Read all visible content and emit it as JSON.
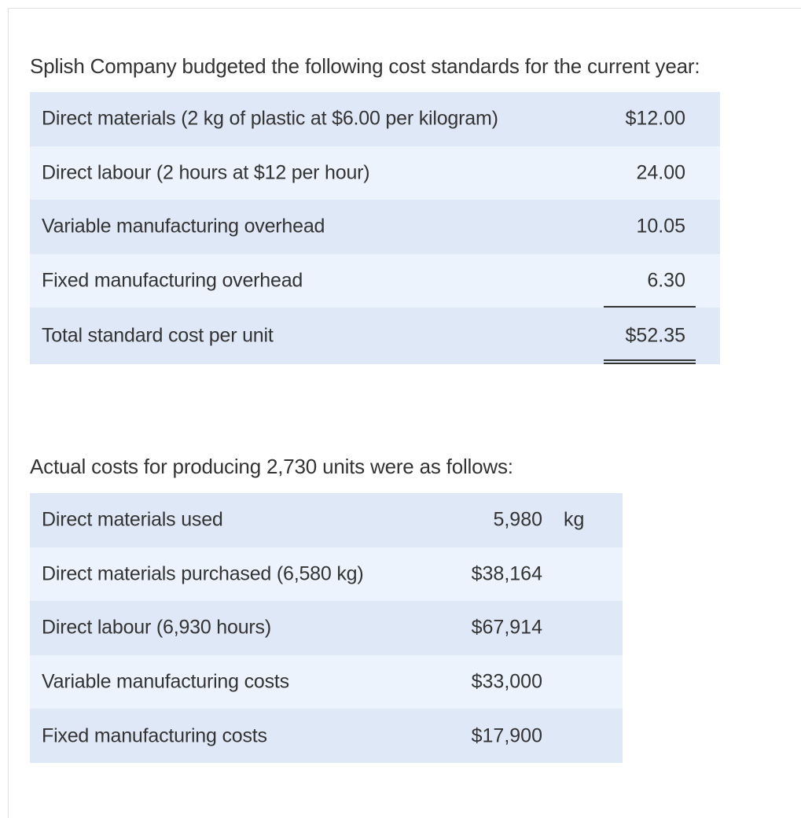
{
  "intro_text": "Splish Company budgeted the following cost standards for the current year:",
  "standards": {
    "rows": [
      {
        "label": "Direct materials (2 kg of plastic at $6.00 per kilogram)",
        "amount": "$12.00"
      },
      {
        "label": "Direct labour (2 hours at $12 per hour)",
        "amount": "24.00"
      },
      {
        "label": "Variable manufacturing overhead",
        "amount": "10.05"
      },
      {
        "label": "Fixed manufacturing overhead",
        "amount": "6.30"
      },
      {
        "label": "Total standard cost per unit",
        "amount": "$52.35"
      }
    ]
  },
  "actual_text": "Actual costs for producing 2,730 units were as follows:",
  "actuals": {
    "rows": [
      {
        "label": "Direct materials used",
        "amount": "5,980",
        "unit": "kg"
      },
      {
        "label": "Direct materials purchased (6,580 kg)",
        "amount": "$38,164",
        "unit": ""
      },
      {
        "label": "Direct labour (6,930 hours)",
        "amount": "$67,914",
        "unit": ""
      },
      {
        "label": "Variable manufacturing costs",
        "amount": "$33,000",
        "unit": ""
      },
      {
        "label": "Fixed manufacturing costs",
        "amount": "$17,900",
        "unit": ""
      }
    ]
  }
}
